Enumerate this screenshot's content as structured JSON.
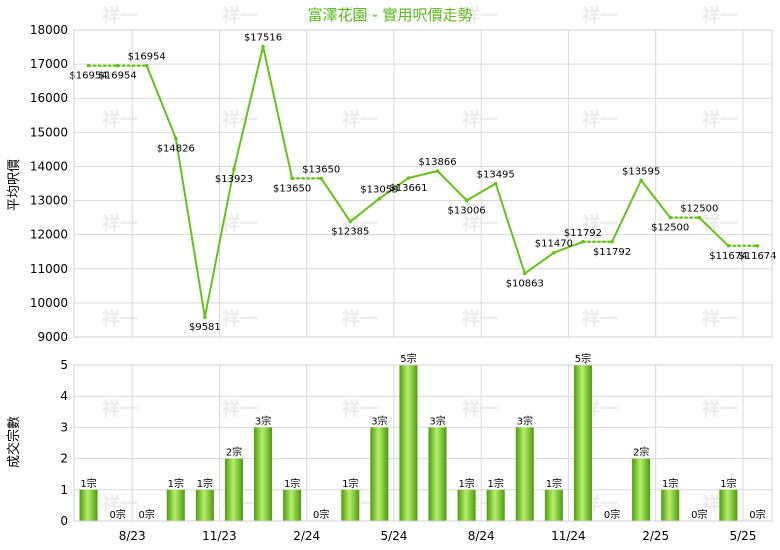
{
  "title": "富澤花園 - 實用呎價走勢",
  "colors": {
    "line": "#66c21a",
    "bar_light": "#b6f06a",
    "bar_dark": "#4e9a12",
    "title": "#5bb81e",
    "grid": "#d9d9d9"
  },
  "watermark": "祥一",
  "chart_data": [
    {
      "type": "line",
      "ylabel": "平均呎價",
      "ylim": [
        9000,
        18000
      ],
      "yticks": [
        9000,
        10000,
        11000,
        12000,
        13000,
        14000,
        15000,
        16000,
        17000,
        18000
      ],
      "grid": true,
      "x_tick_labels": [
        "8/23",
        "11/23",
        "2/24",
        "5/24",
        "8/24",
        "11/24",
        "2/25",
        "5/25"
      ],
      "x_tick_months": [
        2,
        5,
        8,
        11,
        14,
        17,
        20,
        23
      ],
      "series": [
        {
          "values": [
            16954,
            16954,
            16954,
            14826,
            9581,
            13923,
            17516,
            13650,
            13650,
            12385,
            13059,
            13661,
            13866,
            13006,
            13495,
            10863,
            11470,
            11792,
            11792,
            13595,
            12500,
            12500,
            11674,
            11674
          ],
          "labels": [
            "$16954",
            "$16954",
            "$16954",
            "$14826",
            "$9581",
            "$13923",
            "$17516",
            "$13650",
            "$13650",
            "$12385",
            "$13059",
            "$13661",
            "$13866",
            "$13006",
            "$13495",
            "$10863",
            "$11470",
            "$11792",
            "$11792",
            "$13595",
            "$12500",
            "$12500",
            "$11674",
            "$11674"
          ],
          "no_transaction": [
            false,
            true,
            true,
            false,
            false,
            false,
            false,
            false,
            true,
            false,
            false,
            false,
            false,
            false,
            false,
            false,
            false,
            false,
            true,
            false,
            false,
            true,
            false,
            true
          ]
        }
      ]
    },
    {
      "type": "bar",
      "ylabel": "成交宗數",
      "ylim": [
        0,
        5
      ],
      "yticks": [
        0,
        1,
        2,
        3,
        4,
        5
      ],
      "grid": true,
      "values": [
        1,
        0,
        0,
        1,
        1,
        2,
        3,
        1,
        0,
        1,
        3,
        5,
        3,
        1,
        1,
        3,
        1,
        5,
        0,
        2,
        1,
        0,
        1,
        0
      ],
      "labels": [
        "1宗",
        "0宗",
        "0宗",
        "1宗",
        "1宗",
        "2宗",
        "3宗",
        "1宗",
        "0宗",
        "1宗",
        "3宗",
        "5宗",
        "3宗",
        "1宗",
        "1宗",
        "3宗",
        "1宗",
        "5宗",
        "0宗",
        "2宗",
        "1宗",
        "0宗",
        "1宗",
        "0宗"
      ]
    }
  ]
}
